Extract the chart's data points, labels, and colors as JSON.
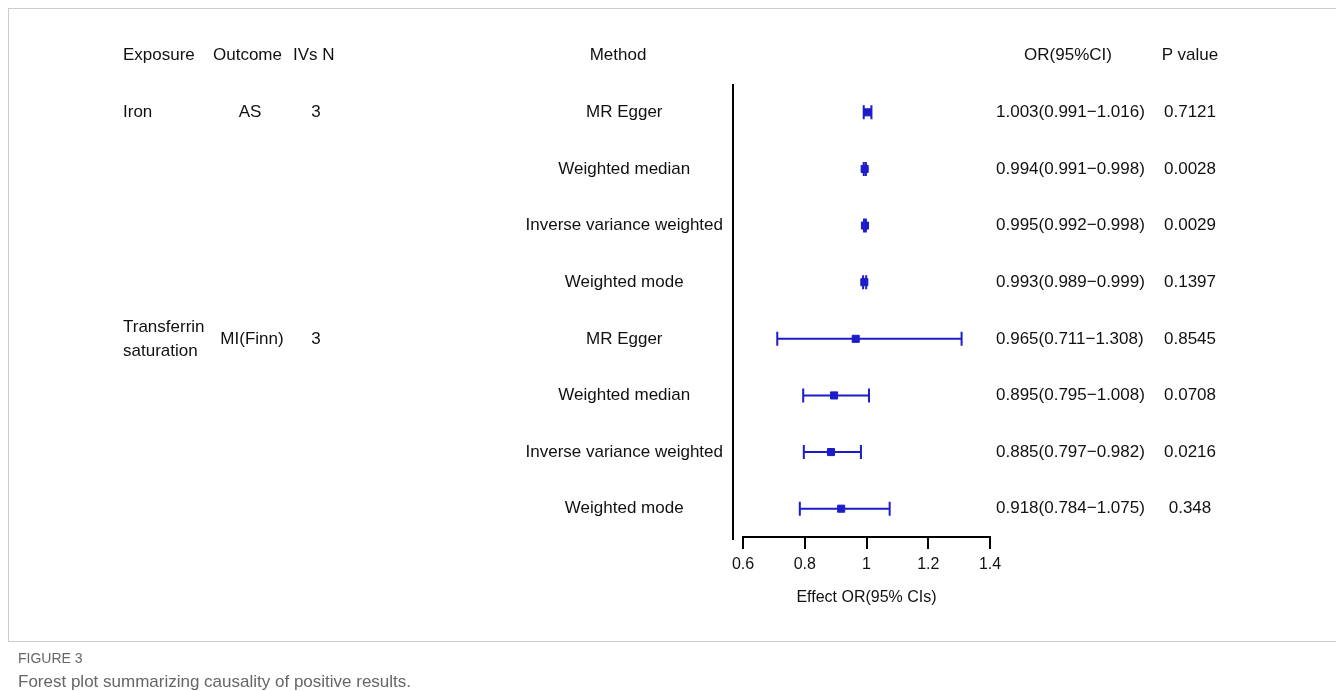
{
  "chart_data": {
    "type": "scatter",
    "orientation": "horizontal",
    "xlabel": "Effect OR(95% CIs)",
    "categories": [
      "MR Egger",
      "Weighted median",
      "Inverse variance weighted",
      "Weighted mode",
      "MR Egger",
      "Weighted median",
      "Inverse variance weighted",
      "Weighted mode"
    ],
    "values": [
      1.003,
      0.994,
      0.995,
      0.993,
      0.965,
      0.895,
      0.885,
      0.918
    ],
    "errors": [
      [
        0.991,
        1.016
      ],
      [
        0.991,
        0.998
      ],
      [
        0.992,
        0.998
      ],
      [
        0.989,
        0.999
      ],
      [
        0.711,
        1.308
      ],
      [
        0.795,
        1.008
      ],
      [
        0.797,
        0.982
      ],
      [
        0.784,
        1.075
      ]
    ],
    "value_labels": [
      "1.003(0.991−1.016)",
      "0.994(0.991−0.998)",
      "0.995(0.992−0.998)",
      "0.993(0.989−0.999)",
      "0.965(0.711−1.308)",
      "0.895(0.795−1.008)",
      "0.885(0.797−0.982)",
      "0.918(0.784−1.075)"
    ],
    "color": "#1c1cc8",
    "marker": "square",
    "grid": false,
    "legend": false,
    "xlim": [
      0.6,
      1.4
    ],
    "xticks": [
      0.6,
      0.8,
      1,
      1.2,
      1.4
    ],
    "annotations": [
      "Exposure",
      "Outcome",
      "IVs N",
      "Method",
      "OR(95%CI)",
      "P value",
      "Iron",
      "AS",
      "3",
      "Transferrin saturation",
      "MI(Finn)",
      "3",
      "0.7121",
      "0.0028",
      "0.0029",
      "0.1397",
      "0.8545",
      "0.0708",
      "0.0216",
      "0.348",
      "FIGURE 3",
      "Forest plot summarizing causality of positive results."
    ]
  }
}
